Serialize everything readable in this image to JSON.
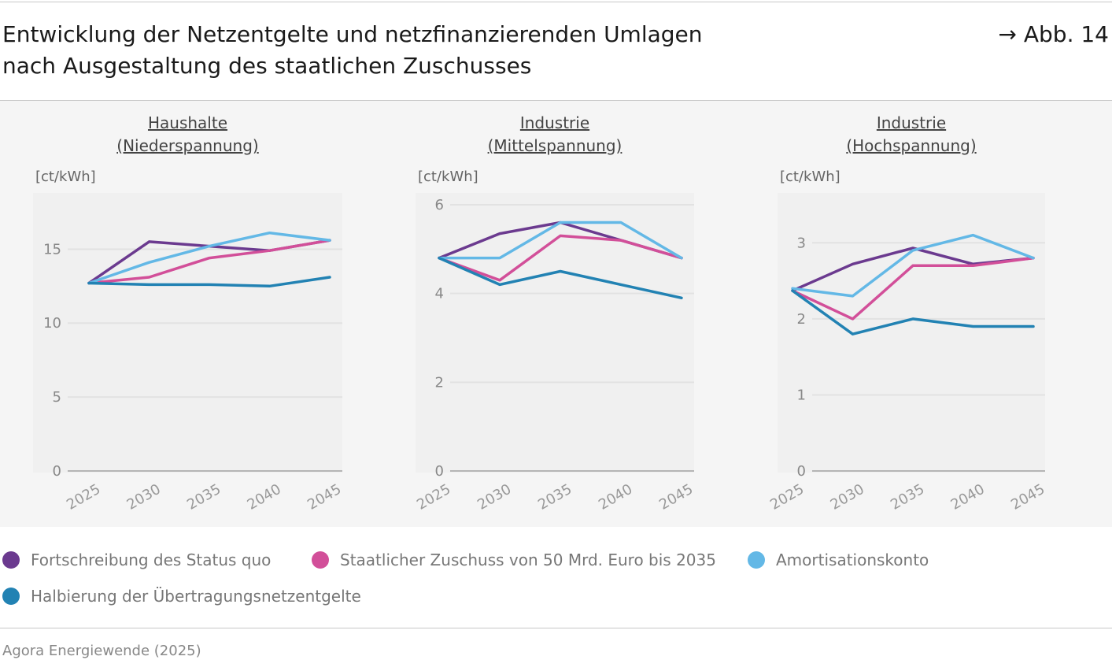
{
  "header": {
    "title_line1": "Entwicklung der Netzentgelte und netzfinanzierenden Umlagen",
    "title_line2": "nach Ausgestaltung des staatlichen Zuschusses",
    "figure_ref": "→ Abb. 14"
  },
  "footer": {
    "source": "Agora Energiewende (2025)"
  },
  "legend": [
    {
      "label": "Fortschreibung des Status quo",
      "color": "#6b3a8f"
    },
    {
      "label": "Staatlicher Zuschuss von 50 Mrd. Euro bis 2035",
      "color": "#d24f99"
    },
    {
      "label": "Amortisationskonto",
      "color": "#63b8e6"
    },
    {
      "label": "Halbierung der Übertragungsnetzentgelte",
      "color": "#2282b3"
    }
  ],
  "chart_data": [
    {
      "type": "line",
      "title_line1": "Haushalte",
      "title_line2": "(Niederspannung)",
      "ylabel": "[ct/kWh]",
      "x": [
        "2025",
        "2030",
        "2035",
        "2040",
        "2045"
      ],
      "ylim": [
        0,
        18
      ],
      "yticks": [
        0,
        5,
        10,
        15
      ],
      "grid": true,
      "series": [
        {
          "name": "Fortschreibung des Status quo",
          "values": [
            12.7,
            15.5,
            15.2,
            14.9,
            15.6
          ]
        },
        {
          "name": "Staatlicher Zuschuss von 50 Mrd. Euro bis 2035",
          "values": [
            12.7,
            13.1,
            14.4,
            14.9,
            15.6
          ]
        },
        {
          "name": "Amortisationskonto",
          "values": [
            12.7,
            14.1,
            15.2,
            16.1,
            15.6
          ]
        },
        {
          "name": "Halbierung der Übertragungsnetzentgelte",
          "values": [
            12.7,
            12.6,
            12.6,
            12.5,
            13.1
          ]
        }
      ]
    },
    {
      "type": "line",
      "title_line1": "Industrie",
      "title_line2": "(Mittelspannung)",
      "ylabel": "[ct/kWh]",
      "x": [
        "2025",
        "2030",
        "2035",
        "2040",
        "2045"
      ],
      "ylim": [
        0,
        6
      ],
      "yticks": [
        0,
        2,
        4,
        6
      ],
      "grid": true,
      "series": [
        {
          "name": "Fortschreibung des Status quo",
          "values": [
            4.8,
            5.35,
            5.6,
            5.2,
            4.8
          ]
        },
        {
          "name": "Staatlicher Zuschuss von 50 Mrd. Euro bis 2035",
          "values": [
            4.8,
            4.3,
            5.3,
            5.2,
            4.8
          ]
        },
        {
          "name": "Amortisationskonto",
          "values": [
            4.8,
            4.8,
            5.6,
            5.6,
            4.8
          ]
        },
        {
          "name": "Halbierung der Übertragungsnetzentgelte",
          "values": [
            4.8,
            4.2,
            4.5,
            4.2,
            3.9
          ]
        }
      ]
    },
    {
      "type": "line",
      "title_line1": "Industrie",
      "title_line2": "(Hochspannung)",
      "ylabel": "[ct/kWh]",
      "x": [
        "2025",
        "2030",
        "2035",
        "2040",
        "2045"
      ],
      "ylim": [
        0,
        3.5
      ],
      "yticks": [
        0,
        1,
        2,
        3
      ],
      "grid": true,
      "series": [
        {
          "name": "Fortschreibung des Status quo",
          "values": [
            2.37,
            2.72,
            2.93,
            2.72,
            2.8
          ]
        },
        {
          "name": "Staatlicher Zuschuss von 50 Mrd. Euro bis 2035",
          "values": [
            2.37,
            2.0,
            2.7,
            2.7,
            2.8
          ]
        },
        {
          "name": "Amortisationskonto",
          "values": [
            2.4,
            2.3,
            2.9,
            3.1,
            2.8
          ]
        },
        {
          "name": "Halbierung der Übertragungsnetzentgelte",
          "values": [
            2.37,
            1.8,
            2.0,
            1.9,
            1.9
          ]
        }
      ]
    }
  ]
}
